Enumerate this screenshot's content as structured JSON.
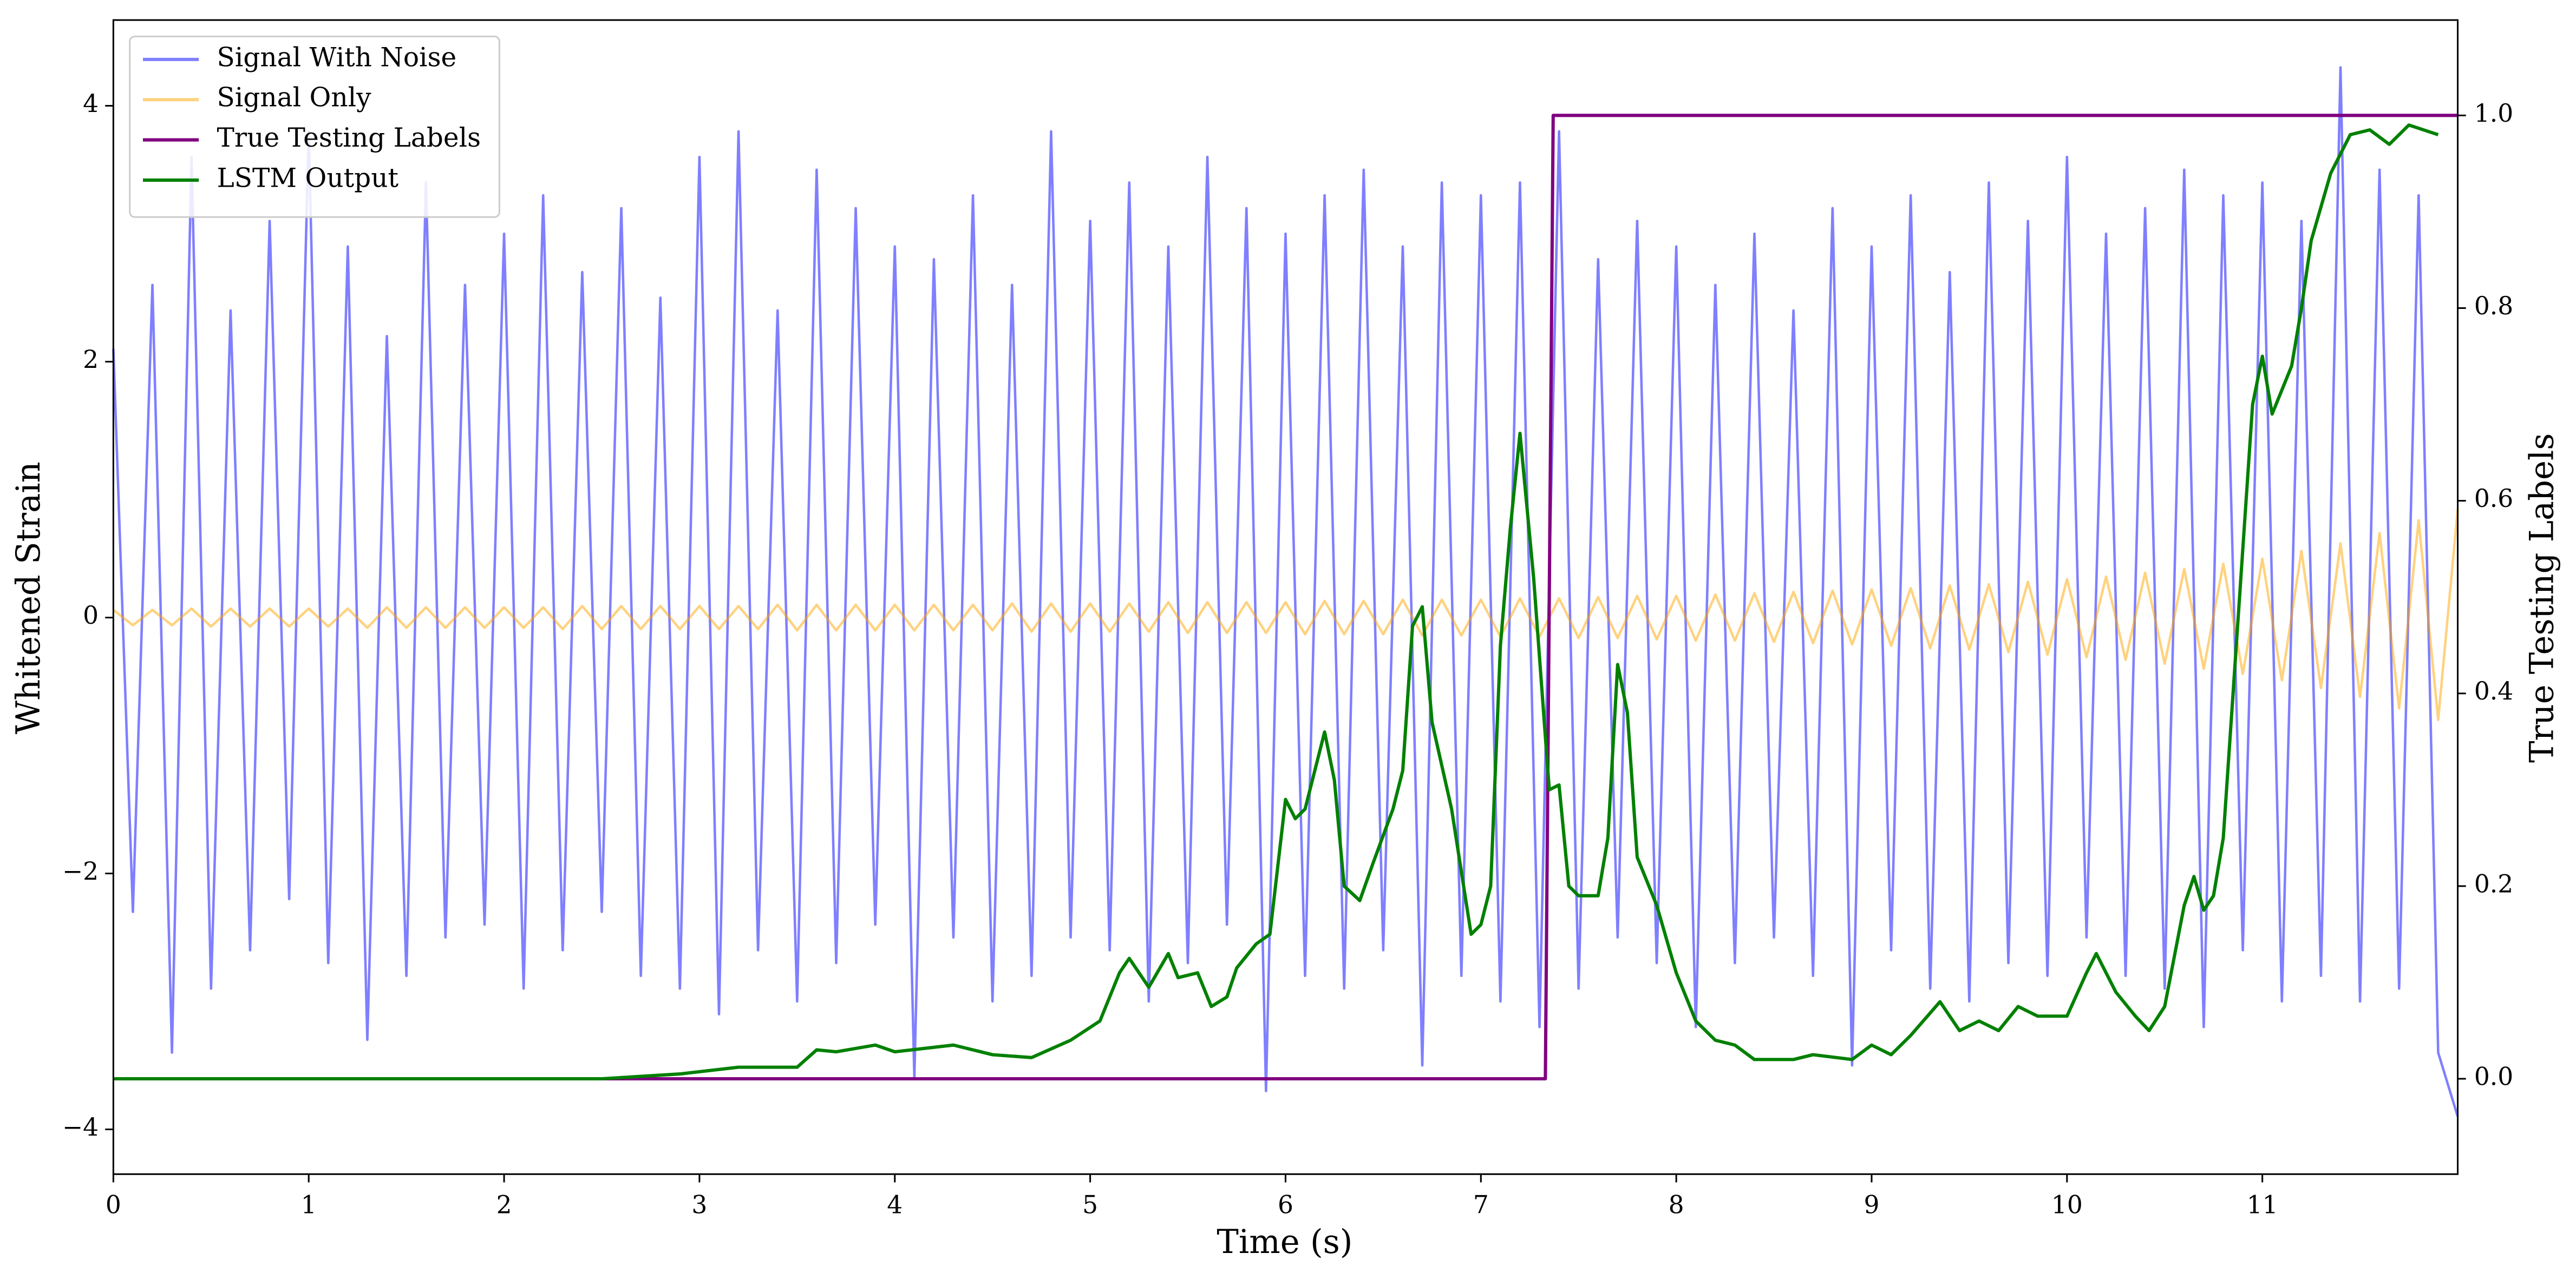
{
  "chart_data": {
    "type": "line",
    "xlabel": "Time (s)",
    "ylabel": "Whitened Strain",
    "y2label": "True Testing Labels",
    "xlim": [
      0,
      12
    ],
    "ylim": [
      -4.35,
      4.67
    ],
    "y2lim": [
      -0.099,
      1.099
    ],
    "xticks": [
      0,
      1,
      2,
      3,
      4,
      5,
      6,
      7,
      8,
      9,
      10,
      11
    ],
    "yticks": [
      {
        "value": -4,
        "label": "−4"
      },
      {
        "value": -2,
        "label": "−2"
      },
      0,
      2,
      4
    ],
    "y2ticks": [
      {
        "value": 0,
        "label": "0.0"
      },
      0.2,
      0.4,
      0.6,
      0.8,
      {
        "value": 1,
        "label": "1.0"
      }
    ],
    "legend": "upper left",
    "x": [
      0,
      0.1,
      0.2,
      0.3,
      0.4,
      0.5,
      0.6,
      0.7,
      0.8,
      0.9,
      1,
      1.1,
      1.2,
      1.3,
      1.4,
      1.5,
      1.6,
      1.7,
      1.8,
      1.9,
      2,
      2.1,
      2.2,
      2.3,
      2.4,
      2.5,
      2.6,
      2.7,
      2.8,
      2.9,
      3,
      3.1,
      3.2,
      3.3,
      3.4,
      3.5,
      3.6,
      3.7,
      3.8,
      3.9,
      4,
      4.1,
      4.2,
      4.3,
      4.4,
      4.5,
      4.6,
      4.7,
      4.8,
      4.9,
      5,
      5.1,
      5.2,
      5.3,
      5.4,
      5.5,
      5.6,
      5.7,
      5.8,
      5.9,
      6,
      6.1,
      6.2,
      6.3,
      6.4,
      6.5,
      6.6,
      6.7,
      6.8,
      6.9,
      7,
      7.1,
      7.2,
      7.3,
      7.4,
      7.5,
      7.6,
      7.7,
      7.8,
      7.9,
      8,
      8.1,
      8.2,
      8.3,
      8.4,
      8.5,
      8.6,
      8.7,
      8.8,
      8.9,
      9,
      9.1,
      9.2,
      9.3,
      9.4,
      9.5,
      9.6,
      9.7,
      9.8,
      9.9,
      10,
      10.1,
      10.2,
      10.3,
      10.4,
      10.5,
      10.6,
      10.7,
      10.8,
      10.9,
      11,
      11.1,
      11.2,
      11.3,
      11.4,
      11.5,
      11.6,
      11.7,
      11.8,
      11.9,
      12
    ],
    "series": [
      {
        "name": "Signal With Noise",
        "color": "#0000ff",
        "alpha": 0.5,
        "axis": "y",
        "values": [
          2.1,
          -2.3,
          2.6,
          -3.4,
          3.6,
          -2.9,
          2.4,
          -2.6,
          3.1,
          -2.2,
          3.8,
          -2.7,
          2.9,
          -3.3,
          2.2,
          -2.8,
          3.4,
          -2.5,
          2.6,
          -2.4,
          3.0,
          -2.9,
          3.3,
          -2.6,
          2.7,
          -2.3,
          3.2,
          -2.8,
          2.5,
          -2.9,
          3.6,
          -3.1,
          3.8,
          -2.6,
          2.4,
          -3.0,
          3.5,
          -2.7,
          3.2,
          -2.4,
          2.9,
          -3.6,
          2.8,
          -2.5,
          3.3,
          -3.0,
          2.6,
          -2.8,
          3.8,
          -2.5,
          3.1,
          -2.6,
          3.4,
          -3.0,
          2.9,
          -2.7,
          3.6,
          -2.4,
          3.2,
          -3.7,
          3.0,
          -2.8,
          3.3,
          -2.9,
          3.5,
          -2.6,
          2.9,
          -3.5,
          3.4,
          -2.8,
          3.3,
          -3.0,
          3.4,
          -3.2,
          3.8,
          -2.9,
          2.8,
          -2.5,
          3.1,
          -2.7,
          2.9,
          -3.2,
          2.6,
          -2.7,
          3.0,
          -2.5,
          2.4,
          -2.8,
          3.2,
          -3.5,
          2.9,
          -2.6,
          3.3,
          -2.9,
          2.7,
          -3.0,
          3.4,
          -2.7,
          3.1,
          -2.8,
          3.6,
          -2.5,
          3.0,
          -2.8,
          3.2,
          -2.9,
          3.5,
          -3.2,
          3.3,
          -2.6,
          3.4,
          -3.0,
          3.1,
          -2.8,
          4.3,
          -3.0,
          3.5,
          -2.9,
          3.3,
          -3.4,
          -3.9
        ]
      },
      {
        "name": "Signal Only",
        "color": "#ffa500",
        "alpha": 0.5,
        "axis": "y",
        "values": [
          0.06,
          -0.06,
          0.06,
          -0.06,
          0.07,
          -0.07,
          0.07,
          -0.07,
          0.07,
          -0.07,
          0.07,
          -0.07,
          0.07,
          -0.08,
          0.08,
          -0.08,
          0.08,
          -0.08,
          0.08,
          -0.08,
          0.08,
          -0.08,
          0.08,
          -0.09,
          0.09,
          -0.09,
          0.09,
          -0.09,
          0.09,
          -0.09,
          0.09,
          -0.09,
          0.09,
          -0.09,
          0.1,
          -0.1,
          0.1,
          -0.1,
          0.1,
          -0.1,
          0.1,
          -0.1,
          0.1,
          -0.1,
          0.1,
          -0.1,
          0.11,
          -0.11,
          0.11,
          -0.11,
          0.11,
          -0.11,
          0.11,
          -0.11,
          0.12,
          -0.12,
          0.12,
          -0.12,
          0.12,
          -0.12,
          0.12,
          -0.13,
          0.13,
          -0.13,
          0.13,
          -0.13,
          0.14,
          -0.14,
          0.14,
          -0.14,
          0.14,
          -0.15,
          0.15,
          -0.15,
          0.15,
          -0.16,
          0.16,
          -0.16,
          0.17,
          -0.17,
          0.17,
          -0.18,
          0.18,
          -0.18,
          0.19,
          -0.19,
          0.2,
          -0.2,
          0.21,
          -0.21,
          0.22,
          -0.22,
          0.23,
          -0.24,
          0.25,
          -0.25,
          0.26,
          -0.27,
          0.28,
          -0.29,
          0.3,
          -0.31,
          0.32,
          -0.33,
          0.35,
          -0.36,
          0.38,
          -0.4,
          0.42,
          -0.44,
          0.46,
          -0.49,
          0.52,
          -0.55,
          0.58,
          -0.62,
          0.66,
          -0.71,
          0.76,
          -0.8,
          0.85
        ]
      },
      {
        "name": "True Testing Labels",
        "color": "#800080",
        "axis": "y2",
        "x": [
          0,
          7.33,
          7.37,
          12
        ],
        "values": [
          0,
          0,
          1,
          1
        ]
      },
      {
        "name": "LSTM Output",
        "color": "#008000",
        "axis": "y2",
        "x": [
          0,
          2.5,
          2.9,
          3.2,
          3.5,
          3.6,
          3.7,
          3.9,
          4.0,
          4.3,
          4.5,
          4.7,
          4.9,
          5.05,
          5.15,
          5.2,
          5.3,
          5.4,
          5.45,
          5.55,
          5.62,
          5.7,
          5.75,
          5.85,
          5.92,
          6.0,
          6.05,
          6.1,
          6.2,
          6.25,
          6.3,
          6.38,
          6.45,
          6.55,
          6.6,
          6.65,
          6.7,
          6.75,
          6.85,
          6.95,
          7.0,
          7.05,
          7.1,
          7.15,
          7.2,
          7.27,
          7.35,
          7.4,
          7.45,
          7.5,
          7.6,
          7.65,
          7.7,
          7.75,
          7.8,
          7.9,
          8.0,
          8.1,
          8.2,
          8.3,
          8.4,
          8.5,
          8.6,
          8.7,
          8.9,
          9.0,
          9.1,
          9.2,
          9.35,
          9.45,
          9.55,
          9.65,
          9.75,
          9.85,
          10.0,
          10.1,
          10.15,
          10.25,
          10.35,
          10.42,
          10.5,
          10.6,
          10.65,
          10.7,
          10.75,
          10.8,
          10.85,
          10.9,
          10.95,
          11.0,
          11.05,
          11.15,
          11.2,
          11.25,
          11.35,
          11.45,
          11.55,
          11.65,
          11.75,
          11.9
        ],
        "values": [
          0,
          0,
          0.005,
          0.012,
          0.012,
          0.03,
          0.028,
          0.035,
          0.028,
          0.035,
          0.025,
          0.022,
          0.04,
          0.06,
          0.11,
          0.125,
          0.095,
          0.13,
          0.105,
          0.11,
          0.075,
          0.085,
          0.115,
          0.14,
          0.15,
          0.29,
          0.27,
          0.28,
          0.36,
          0.31,
          0.2,
          0.185,
          0.225,
          0.28,
          0.32,
          0.47,
          0.49,
          0.37,
          0.28,
          0.15,
          0.16,
          0.2,
          0.45,
          0.57,
          0.67,
          0.52,
          0.3,
          0.305,
          0.2,
          0.19,
          0.19,
          0.25,
          0.43,
          0.38,
          0.23,
          0.18,
          0.11,
          0.06,
          0.04,
          0.035,
          0.02,
          0.02,
          0.02,
          0.025,
          0.02,
          0.035,
          0.025,
          0.045,
          0.08,
          0.05,
          0.06,
          0.05,
          0.075,
          0.065,
          0.065,
          0.11,
          0.13,
          0.09,
          0.065,
          0.05,
          0.075,
          0.18,
          0.21,
          0.175,
          0.19,
          0.25,
          0.4,
          0.55,
          0.7,
          0.75,
          0.69,
          0.74,
          0.8,
          0.87,
          0.94,
          0.98,
          0.985,
          0.97,
          0.99,
          0.98
        ]
      }
    ]
  }
}
